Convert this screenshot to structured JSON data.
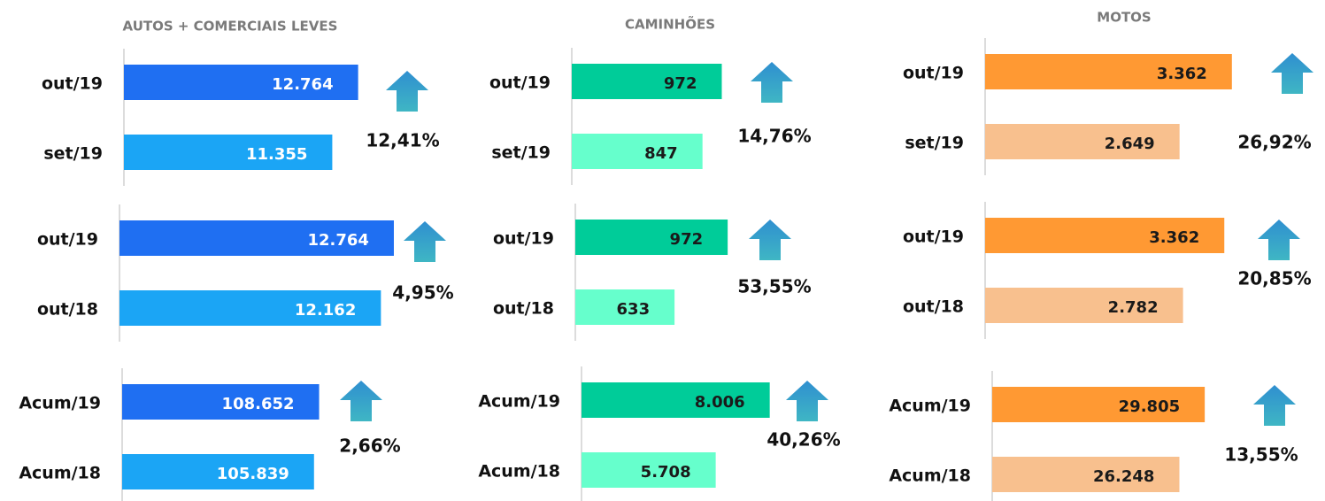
{
  "chart_data": [
    {
      "type": "bar",
      "title": "AUTOS + COMERCIAIS LEVES",
      "categories": [
        "out/19",
        "set/19"
      ],
      "values": [
        12764,
        11355
      ],
      "value_labels": [
        "12.764",
        "11.355"
      ],
      "colors": [
        "#1f6ff2",
        "#1ba5f5"
      ],
      "label_color": "#ffffff",
      "xlim": [
        0,
        16400
      ],
      "annotation": "12,41%"
    },
    {
      "type": "bar",
      "title": "CAMINHÕES",
      "categories": [
        "out/19",
        "set/19"
      ],
      "values": [
        972,
        847
      ],
      "value_labels": [
        "972",
        "847"
      ],
      "colors": [
        "#00cc99",
        "#66ffcc"
      ],
      "label_color": "#1a1a1a",
      "xlim": [
        0,
        1950
      ],
      "annotation": "14,76%"
    },
    {
      "type": "bar",
      "title": "MOTOS",
      "categories": [
        "out/19",
        "set/19"
      ],
      "values": [
        3362,
        2649
      ],
      "value_labels": [
        "3.362",
        "2.649"
      ],
      "colors": [
        "#ff9933",
        "#f8c08e"
      ],
      "label_color": "#1a1a1a",
      "xlim": [
        0,
        4100
      ],
      "annotation": "26,92%"
    },
    {
      "type": "bar",
      "categories": [
        "out/19",
        "out/18"
      ],
      "values": [
        12764,
        12162
      ],
      "value_labels": [
        "12.764",
        "12.162"
      ],
      "colors": [
        "#1f6ff2",
        "#1ba5f5"
      ],
      "label_color": "#ffffff",
      "xlim": [
        0,
        14000
      ],
      "annotation": "4,95%"
    },
    {
      "type": "bar",
      "categories": [
        "out/19",
        "out/18"
      ],
      "values": [
        972,
        633
      ],
      "value_labels": [
        "972",
        "633"
      ],
      "colors": [
        "#00cc99",
        "#66ffcc"
      ],
      "label_color": "#1a1a1a",
      "xlim": [
        0,
        1920
      ],
      "annotation": "53,55%"
    },
    {
      "type": "bar",
      "categories": [
        "out/19",
        "out/18"
      ],
      "values": [
        3362,
        2782
      ],
      "value_labels": [
        "3.362",
        "2.782"
      ],
      "colors": [
        "#ff9933",
        "#f8c08e"
      ],
      "label_color": "#1a1a1a",
      "xlim": [
        0,
        4230
      ],
      "annotation": "20,85%"
    },
    {
      "type": "bar",
      "categories": [
        "Acum/19",
        "Acum/18"
      ],
      "values": [
        108652,
        105839
      ],
      "value_labels": [
        "108.652",
        "105.839"
      ],
      "colors": [
        "#1f6ff2",
        "#1ba5f5"
      ],
      "label_color": "#ffffff",
      "xlim": [
        0,
        166000
      ],
      "annotation": "2,66%"
    },
    {
      "type": "bar",
      "categories": [
        "Acum/19",
        "Acum/18"
      ],
      "values": [
        8006,
        5708
      ],
      "value_labels": [
        "8.006",
        "5.708"
      ],
      "colors": [
        "#00cc99",
        "#66ffcc"
      ],
      "label_color": "#1a1a1a",
      "xlim": [
        0,
        12800
      ],
      "annotation": "40,26%"
    },
    {
      "type": "bar",
      "categories": [
        "Acum/19",
        "Acum/18"
      ],
      "values": [
        29805,
        26248
      ],
      "value_labels": [
        "29.805",
        "26.248"
      ],
      "colors": [
        "#ff9933",
        "#f8c08e"
      ],
      "label_color": "#1a1a1a",
      "xlim": [
        0,
        42200
      ],
      "annotation": "13,55%"
    }
  ]
}
